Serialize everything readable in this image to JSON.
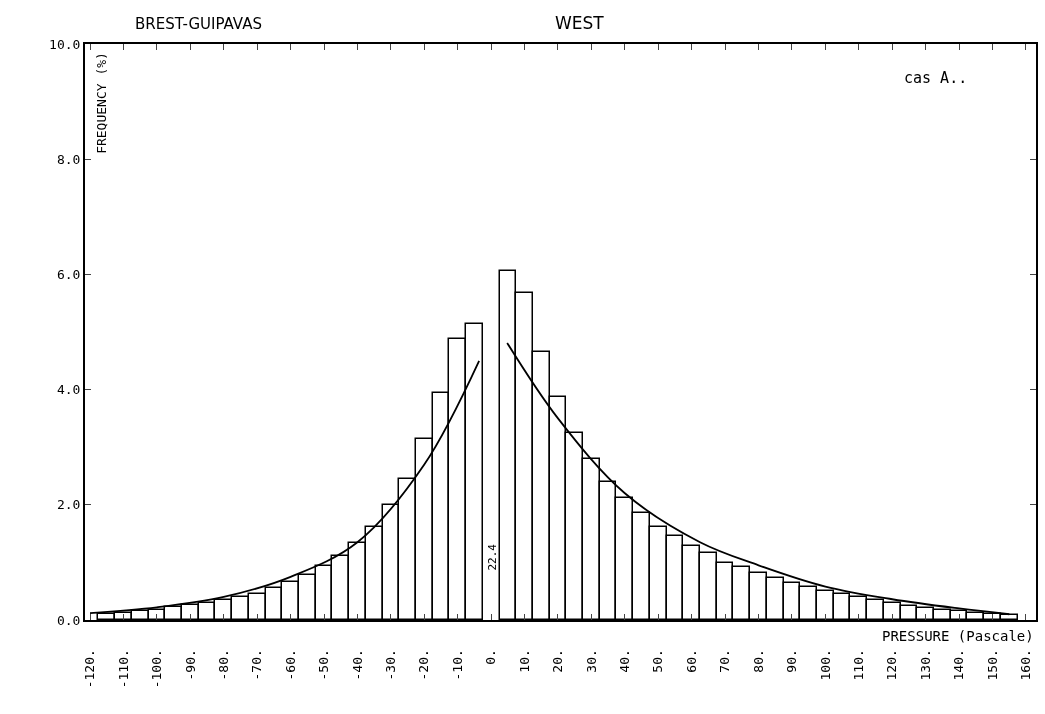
{
  "chart_data": {
    "type": "histogram",
    "title": "BREST-GUIPAVAS",
    "subtitle": "WEST",
    "xlabel": "PRESSURE (Pascale)",
    "ylabel": "FREQUENCY (%)",
    "annotations": [
      "cas A..",
      "22.4"
    ],
    "bins": [
      -117.5,
      -112.5,
      -107.5,
      -102.5,
      -97.5,
      -92.5,
      -87.5,
      -82.5,
      -77.5,
      -72.5,
      -67.5,
      -62.5,
      -57.5,
      -52.5,
      -47.5,
      -42.5,
      -37.5,
      -32.5,
      -27.5,
      -22.5,
      -17.5,
      -12.5,
      -7.5,
      -2.5,
      2.5,
      7.5,
      12.5,
      17.5,
      22.5,
      27.5,
      32.5,
      37.5,
      42.5,
      47.5,
      52.5,
      57.5,
      62.5,
      67.5,
      72.5,
      77.5,
      82.5,
      87.5,
      92.5,
      97.5,
      102.5,
      107.5,
      112.5,
      117.5,
      122.5,
      127.5,
      132.5,
      137.5,
      142.5,
      147.5,
      152.5,
      157.5
    ],
    "values": [
      0.1,
      0.12,
      0.15,
      0.18,
      0.22,
      0.26,
      0.29,
      0.35,
      0.4,
      0.46,
      0.55,
      0.66,
      0.78,
      0.93,
      1.11,
      1.33,
      1.62,
      2.0,
      2.45,
      3.14,
      3.94,
      4.88,
      5.14,
      null,
      6.06,
      5.68,
      4.65,
      3.87,
      3.25,
      2.79,
      2.4,
      2.12,
      1.86,
      1.62,
      1.46,
      1.28,
      1.16,
      0.99,
      0.92,
      0.82,
      0.73,
      0.64,
      0.57,
      0.51,
      0.46,
      0.4,
      0.34,
      0.3,
      0.25,
      0.21,
      0.18,
      0.15,
      0.13,
      0.1,
      0.08
    ],
    "color": "#ffffff",
    "series": [
      {
        "type": "line",
        "color": "#000000",
        "x": [
          -120,
          -100,
          -80,
          -60,
          -40,
          -20,
          -3.6
        ],
        "values": [
          0.12,
          0.22,
          0.4,
          0.75,
          1.35,
          2.7,
          4.5
        ]
      },
      {
        "type": "line",
        "color": "#000000",
        "x": [
          4.8,
          20,
          40,
          62.5,
          80,
          100,
          120,
          140,
          155
        ],
        "values": [
          4.81,
          3.5,
          2.2,
          1.35,
          0.95,
          0.58,
          0.36,
          0.2,
          0.1
        ]
      }
    ],
    "xlim": [
      -121.5,
      163
    ],
    "ylim": [
      0,
      10
    ],
    "xticks": [
      {
        "value": -120,
        "label": "-120."
      },
      {
        "value": -110,
        "label": "-110."
      },
      {
        "value": -100,
        "label": "-100."
      },
      {
        "value": -90,
        "label": "-90."
      },
      {
        "value": -80,
        "label": "-80."
      },
      {
        "value": -70,
        "label": "-70."
      },
      {
        "value": -60,
        "label": "-60."
      },
      {
        "value": -50,
        "label": "-50."
      },
      {
        "value": -40,
        "label": "-40."
      },
      {
        "value": -30,
        "label": "-30."
      },
      {
        "value": -20,
        "label": "-20."
      },
      {
        "value": -10,
        "label": "-10."
      },
      {
        "value": 0,
        "label": "0."
      },
      {
        "value": 10,
        "label": "10."
      },
      {
        "value": 20,
        "label": "20."
      },
      {
        "value": 30,
        "label": "30."
      },
      {
        "value": 40,
        "label": "40."
      },
      {
        "value": 50,
        "label": "50."
      },
      {
        "value": 60,
        "label": "60."
      },
      {
        "value": 70,
        "label": "70."
      },
      {
        "value": 80,
        "label": "80."
      },
      {
        "value": 90,
        "label": "90."
      },
      {
        "value": 100,
        "label": "100."
      },
      {
        "value": 110,
        "label": "110."
      },
      {
        "value": 120,
        "label": "120."
      },
      {
        "value": 130,
        "label": "130."
      },
      {
        "value": 140,
        "label": "140."
      },
      {
        "value": 150,
        "label": "150."
      },
      {
        "value": 160,
        "label": "160."
      }
    ],
    "yticks": [
      {
        "value": 0,
        "label": "0.0"
      },
      {
        "value": 2,
        "label": "2.0"
      },
      {
        "value": 4,
        "label": "4.0"
      },
      {
        "value": 6,
        "label": "6.0"
      },
      {
        "value": 8,
        "label": "8.0"
      },
      {
        "value": 10,
        "label": "10.0"
      }
    ]
  }
}
